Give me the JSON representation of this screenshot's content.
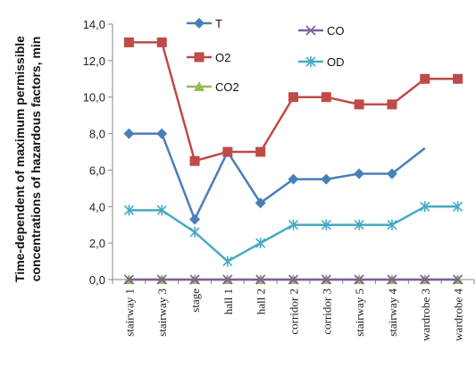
{
  "chart_data": {
    "type": "line",
    "ylabel_line1": "Time-dependent of maximum permissible",
    "ylabel_line2": "concentrations of hazardous factors, min",
    "categories": [
      "stairway 1",
      "stairway 3",
      "stage",
      "hall 1",
      "hall 2",
      "corridor 2",
      "corridor 3",
      "stairway 5",
      "stairway 4",
      "wardrobe 3",
      "wardrobe 4"
    ],
    "ylim": [
      0,
      14
    ],
    "yticks": [
      "0,0",
      "2,0",
      "4,0",
      "6,0",
      "8,0",
      "10,0",
      "12,0",
      "14,0"
    ],
    "ytick_values": [
      0,
      2,
      4,
      6,
      8,
      10,
      12,
      14
    ],
    "legend_position": "top-right",
    "series": [
      {
        "name": "T",
        "color": "#4a7ebb",
        "marker": "diamond",
        "values": [
          8.0,
          8.0,
          3.3,
          7.0,
          4.2,
          5.5,
          5.5,
          5.8,
          5.8,
          7.2,
          null
        ]
      },
      {
        "name": "O2",
        "color": "#be4b48",
        "marker": "square",
        "values": [
          13.0,
          13.0,
          6.5,
          7.0,
          7.0,
          10.0,
          10.0,
          9.6,
          9.6,
          11.0,
          11.0
        ]
      },
      {
        "name": "CO2",
        "color": "#98b954",
        "marker": "triangle",
        "values": [
          0,
          0,
          0,
          0,
          0,
          0,
          0,
          0,
          0,
          0,
          0
        ]
      },
      {
        "name": "CO",
        "color": "#7d60a0",
        "marker": "x",
        "values": [
          0,
          0,
          0,
          0,
          0,
          0,
          0,
          0,
          0,
          0,
          0
        ]
      },
      {
        "name": "OD",
        "color": "#46aac4",
        "marker": "star",
        "values": [
          3.8,
          3.8,
          2.6,
          1.0,
          2.0,
          3.0,
          3.0,
          3.0,
          3.0,
          4.0,
          4.0
        ]
      }
    ]
  }
}
